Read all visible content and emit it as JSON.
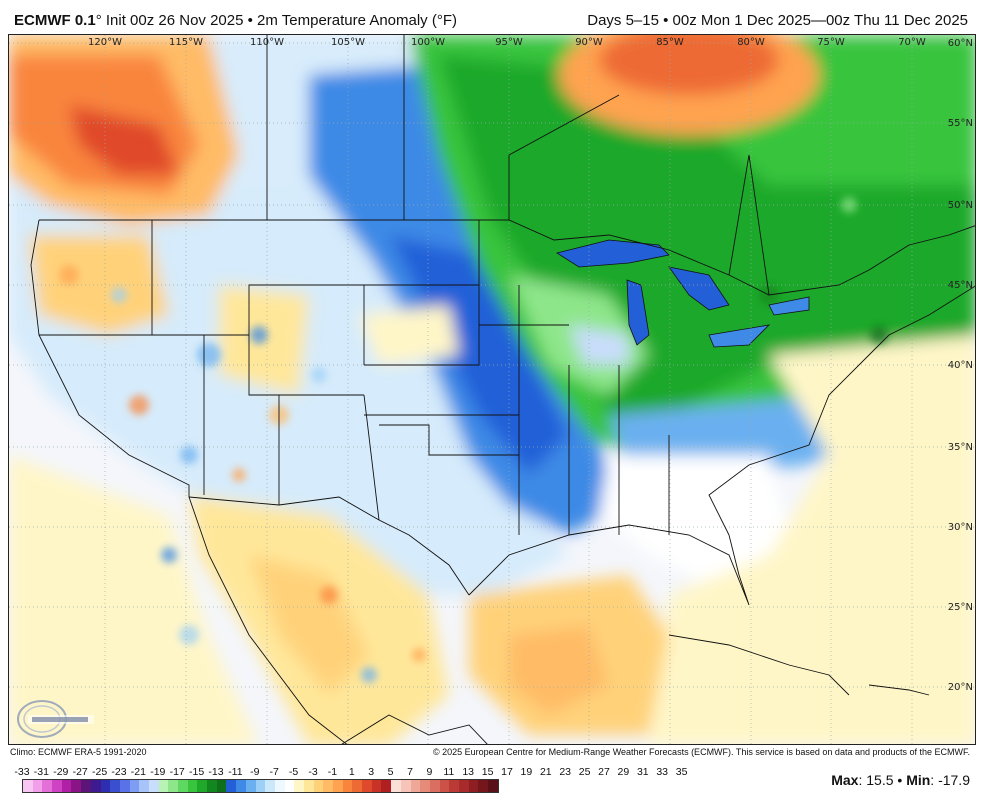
{
  "header": {
    "model": "ECMWF 0.1",
    "init": "° Init 00z 26 Nov 2025 • 2m Temperature Anomaly (°F)",
    "valid": "Days 5–15 • 00z Mon 1 Dec 2025—00z Thu 11 Dec 2025"
  },
  "map": {
    "lon_labels": [
      "120°W",
      "115°W",
      "110°W",
      "105°W",
      "100°W",
      "95°W",
      "90°W",
      "85°W",
      "80°W",
      "75°W",
      "70°W"
    ],
    "lat_labels": [
      "60°N",
      "55°N",
      "50°N",
      "45°N",
      "40°N",
      "35°N",
      "30°N",
      "25°N",
      "20°N"
    ]
  },
  "footer": {
    "climo": "Climo: ECMWF ERA-5 1991-2020",
    "copyright": "© 2025 European Centre for Medium-Range Weather Forecasts (ECMWF). This service is based on data and products of the ECMWF."
  },
  "colorbar": {
    "labels": [
      "-33",
      "-31",
      "-29",
      "-27",
      "-25",
      "-23",
      "-21",
      "-19",
      "-17",
      "-15",
      "-13",
      "-11",
      "-9",
      "-7",
      "-5",
      "-3",
      "-1",
      "1",
      "3",
      "5",
      "7",
      "9",
      "11",
      "13",
      "15",
      "17",
      "19",
      "21",
      "23",
      "25",
      "27",
      "29",
      "31",
      "33",
      "35"
    ],
    "colors": [
      "#f7c6f2",
      "#f29ee9",
      "#e56fd9",
      "#cf42c4",
      "#b01fa6",
      "#8a1486",
      "#5c1478",
      "#3d1a8f",
      "#2d2fb0",
      "#3a4fd0",
      "#5a72e8",
      "#7e9cf2",
      "#a6c4fa",
      "#c9ddfc",
      "#b9f2b5",
      "#8ee68a",
      "#5fd862",
      "#38c43d",
      "#1fa82a",
      "#13871f",
      "#0f6e1a",
      "#2360d8",
      "#3e8ae6",
      "#6ab0f0",
      "#9dd0f7",
      "#cbe8fb",
      "#eef8ff",
      "#ffffff",
      "#fff6c8",
      "#ffe79a",
      "#ffd27a",
      "#ffbb66",
      "#ffa350",
      "#f9853c",
      "#ee6a34",
      "#e04a2c",
      "#c93226",
      "#b02020",
      "#fbe0d8",
      "#f6c4b8",
      "#efa798",
      "#e68a7a",
      "#da6e60",
      "#cc5248",
      "#bb3a36",
      "#a82a2a",
      "#8f1e22",
      "#74161c",
      "#5a1018"
    ]
  },
  "stats": {
    "max_label": "Max",
    "max_value": ": 15.5",
    "sep": " • ",
    "min_label": "Min",
    "min_value": ": -17.9"
  }
}
